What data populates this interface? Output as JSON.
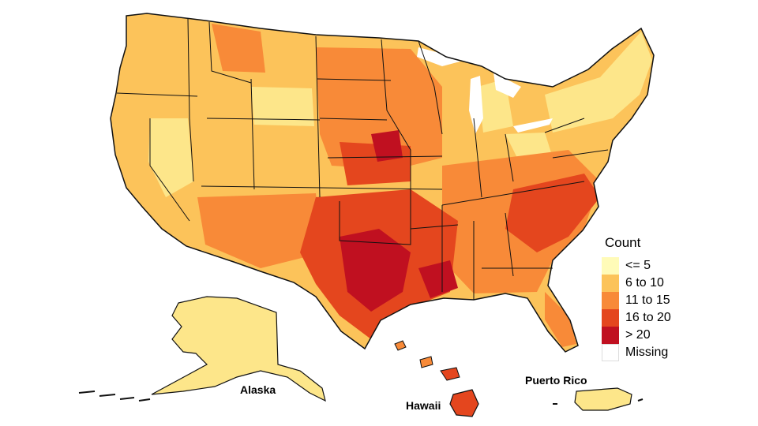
{
  "legend": {
    "title": "Count",
    "items": [
      {
        "label": "<= 5",
        "color": "#fffbb8"
      },
      {
        "label": "6 to 10",
        "color": "#fcc35a"
      },
      {
        "label": "11 to 15",
        "color": "#f88a38"
      },
      {
        "label": "16 to 20",
        "color": "#e4461e"
      },
      {
        "label": "> 20",
        "color": "#c01020"
      },
      {
        "label": "Missing",
        "color": "#ffffff"
      }
    ]
  },
  "insets": {
    "alaska": "Alaska",
    "hawaii": "Hawaii",
    "puerto_rico": "Puerto Rico"
  },
  "colors": {
    "border": "#111111",
    "background": "#ffffff"
  }
}
